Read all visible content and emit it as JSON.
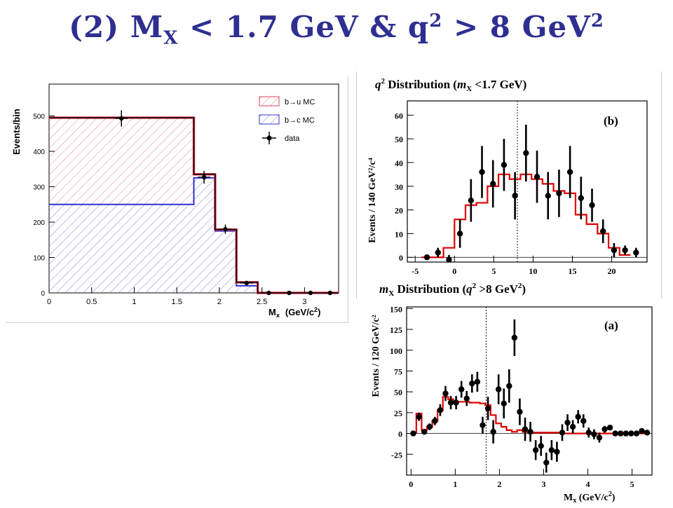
{
  "title": {
    "prefix": "(2) M",
    "sub": "X",
    "middle": " < 1.7 GeV & q",
    "sup1": "2",
    "suffix": " > 8 GeV",
    "sup2": "2"
  },
  "chart_data": [
    {
      "id": "mx-histogram-left",
      "type": "bar",
      "xlabel": "M",
      "xlabel_sub": "x",
      "xlabel_units": "(GeV/c",
      "xlabel_units_sup": "2",
      "xlabel_units_end": ")",
      "ylabel": "Events/bin",
      "xlim": [
        0,
        3.4
      ],
      "ylim": [
        0,
        590
      ],
      "xticks": [
        "0",
        "0.5",
        "1",
        "1.5",
        "2",
        "2.5",
        "3"
      ],
      "xtick_values": [
        0,
        0.5,
        1,
        1.5,
        2,
        2.5,
        3
      ],
      "yticks": [
        "0",
        "100",
        "200",
        "300",
        "400",
        "500"
      ],
      "ytick_values": [
        0,
        100,
        200,
        300,
        400,
        500
      ],
      "bin_edges": [
        0,
        1.7,
        1.95,
        2.2,
        2.45,
        3.4
      ],
      "series": [
        {
          "name": "b→u MC",
          "color": "#e0405a",
          "values": [
            245,
            10,
            4,
            10,
            0
          ]
        },
        {
          "name": "b→c MC",
          "color": "#3030d0",
          "values": [
            250,
            325,
            175,
            20,
            0
          ]
        }
      ],
      "total_color": "#000000",
      "data": {
        "name": "data",
        "x": [
          0.85,
          1.82,
          2.07,
          2.32,
          2.58,
          2.82,
          3.07,
          3.3
        ],
        "y": [
          493,
          327,
          180,
          28,
          0,
          0,
          0,
          0
        ],
        "yerr": [
          23,
          18,
          13,
          5,
          0,
          0,
          0,
          0
        ]
      },
      "legend_position": "top-right"
    },
    {
      "id": "q2-distribution-b",
      "type": "line",
      "title_pre": "q",
      "title_pre_sup": "2",
      "title_mid": " Distribution (",
      "title_var": "m",
      "title_var_sub": "X",
      "title_post": " <1.7 GeV)",
      "panel_label": "(b)",
      "ylabel": "Events / 140 GeV²/c⁴",
      "xlim": [
        -6,
        24.5
      ],
      "ylim": [
        -2,
        66
      ],
      "xticks": [
        "-5",
        "0",
        "5",
        "10",
        "15",
        "20"
      ],
      "xtick_values": [
        -5,
        0,
        5,
        10,
        15,
        20
      ],
      "yticks": [
        "0",
        "10",
        "20",
        "30",
        "40",
        "50",
        "60"
      ],
      "ytick_values": [
        0,
        10,
        20,
        30,
        40,
        50,
        60
      ],
      "cut_line": 8.0,
      "mc": {
        "name": "MC",
        "color": "#e00000",
        "edges": [
          -4.2,
          -2.8,
          -1.4,
          0.0,
          1.4,
          2.8,
          4.2,
          5.6,
          7.0,
          8.4,
          9.8,
          11.2,
          12.6,
          14.0,
          15.4,
          16.8,
          18.2,
          19.6,
          21.0,
          22.4
        ],
        "values": [
          0,
          0,
          4,
          16,
          22,
          23,
          30,
          35,
          33,
          35,
          33,
          31,
          28,
          27,
          18,
          14,
          10,
          4,
          1
        ]
      },
      "data": {
        "x": [
          -3.5,
          -2.1,
          -0.7,
          0.7,
          2.1,
          3.5,
          4.9,
          6.3,
          7.7,
          9.1,
          10.5,
          11.9,
          13.3,
          14.7,
          16.1,
          17.5,
          18.9,
          20.3,
          21.7,
          23.1
        ],
        "y": [
          0,
          2,
          -1,
          10,
          24,
          36,
          31,
          39,
          26,
          44,
          34,
          26,
          27,
          36,
          25,
          22,
          11,
          3,
          3,
          2
        ],
        "yerr": [
          1,
          2,
          2,
          6,
          9,
          11,
          10,
          11,
          10,
          12,
          11,
          10,
          10,
          11,
          9,
          7,
          5,
          3,
          2,
          2
        ]
      }
    },
    {
      "id": "mx-distribution-a",
      "type": "line",
      "title_var": "m",
      "title_var_sub": "X",
      "title_mid": " Distribution (",
      "title_q": "q",
      "title_q_sup": "2",
      "title_post": " >8 GeV",
      "title_post_sup": "2",
      "title_end": ")",
      "panel_label": "(a)",
      "ylabel": "Events / 120 GeV/c²",
      "xlabel": "M",
      "xlabel_sub": "x",
      "xlabel_units": " (GeV/c",
      "xlabel_units_sup": "2",
      "xlabel_units_end": ")",
      "xlim": [
        -0.1,
        5.45
      ],
      "ylim": [
        -50,
        152
      ],
      "xticks": [
        "0",
        "1",
        "2",
        "3",
        "4",
        "5"
      ],
      "xtick_values": [
        0,
        1,
        2,
        3,
        4,
        5
      ],
      "yticks": [
        "-25",
        "0",
        "25",
        "50",
        "75",
        "100",
        "125",
        "150"
      ],
      "ytick_values": [
        -25,
        0,
        25,
        50,
        75,
        100,
        125,
        150
      ],
      "cut_line": 1.7,
      "mc": {
        "name": "MC",
        "color": "#e00000",
        "edges": [
          0.0,
          0.12,
          0.24,
          0.36,
          0.48,
          0.6,
          0.72,
          0.84,
          0.96,
          1.08,
          1.2,
          1.32,
          1.44,
          1.56,
          1.68,
          1.8,
          1.92,
          2.04,
          2.16,
          2.28,
          2.4,
          2.52,
          2.64,
          2.76,
          2.88,
          3.0,
          3.2,
          3.4,
          3.6,
          3.8,
          4.0,
          4.2,
          4.4,
          4.6,
          4.8,
          5.0,
          5.2,
          5.4
        ],
        "values": [
          1,
          24,
          4,
          8,
          15,
          28,
          44,
          41,
          38,
          38,
          38,
          37,
          37,
          36,
          34,
          22,
          12,
          8,
          4,
          2,
          4,
          2,
          1,
          1,
          1,
          1,
          1,
          0,
          0,
          0,
          0,
          0,
          0,
          0,
          0,
          0,
          0
        ]
      },
      "data": {
        "x": [
          0.05,
          0.18,
          0.3,
          0.42,
          0.54,
          0.66,
          0.78,
          0.9,
          1.02,
          1.14,
          1.26,
          1.38,
          1.5,
          1.62,
          1.74,
          1.86,
          1.98,
          2.1,
          2.22,
          2.34,
          2.46,
          2.58,
          2.7,
          2.82,
          2.94,
          3.06,
          3.18,
          3.3,
          3.42,
          3.54,
          3.66,
          3.78,
          3.9,
          4.02,
          4.14,
          4.26,
          4.38,
          4.5,
          4.62,
          4.74,
          4.86,
          4.98,
          5.1,
          5.22,
          5.34
        ],
        "y": [
          0,
          20,
          2,
          8,
          15,
          28,
          48,
          37,
          37,
          53,
          42,
          60,
          62,
          10,
          30,
          2,
          53,
          36,
          57,
          115,
          26,
          5,
          2,
          -20,
          -15,
          -35,
          -20,
          -22,
          1,
          13,
          8,
          20,
          15,
          1,
          -1,
          -5,
          5,
          7,
          0,
          0,
          0,
          0,
          0,
          3,
          1
        ],
        "yerr": [
          2,
          5,
          2,
          4,
          5,
          7,
          9,
          8,
          8,
          10,
          9,
          11,
          12,
          10,
          14,
          14,
          18,
          18,
          20,
          22,
          16,
          14,
          12,
          12,
          12,
          12,
          12,
          12,
          10,
          10,
          8,
          8,
          8,
          6,
          6,
          6,
          4,
          3,
          2,
          2,
          2,
          2,
          2,
          2,
          2
        ]
      }
    }
  ]
}
